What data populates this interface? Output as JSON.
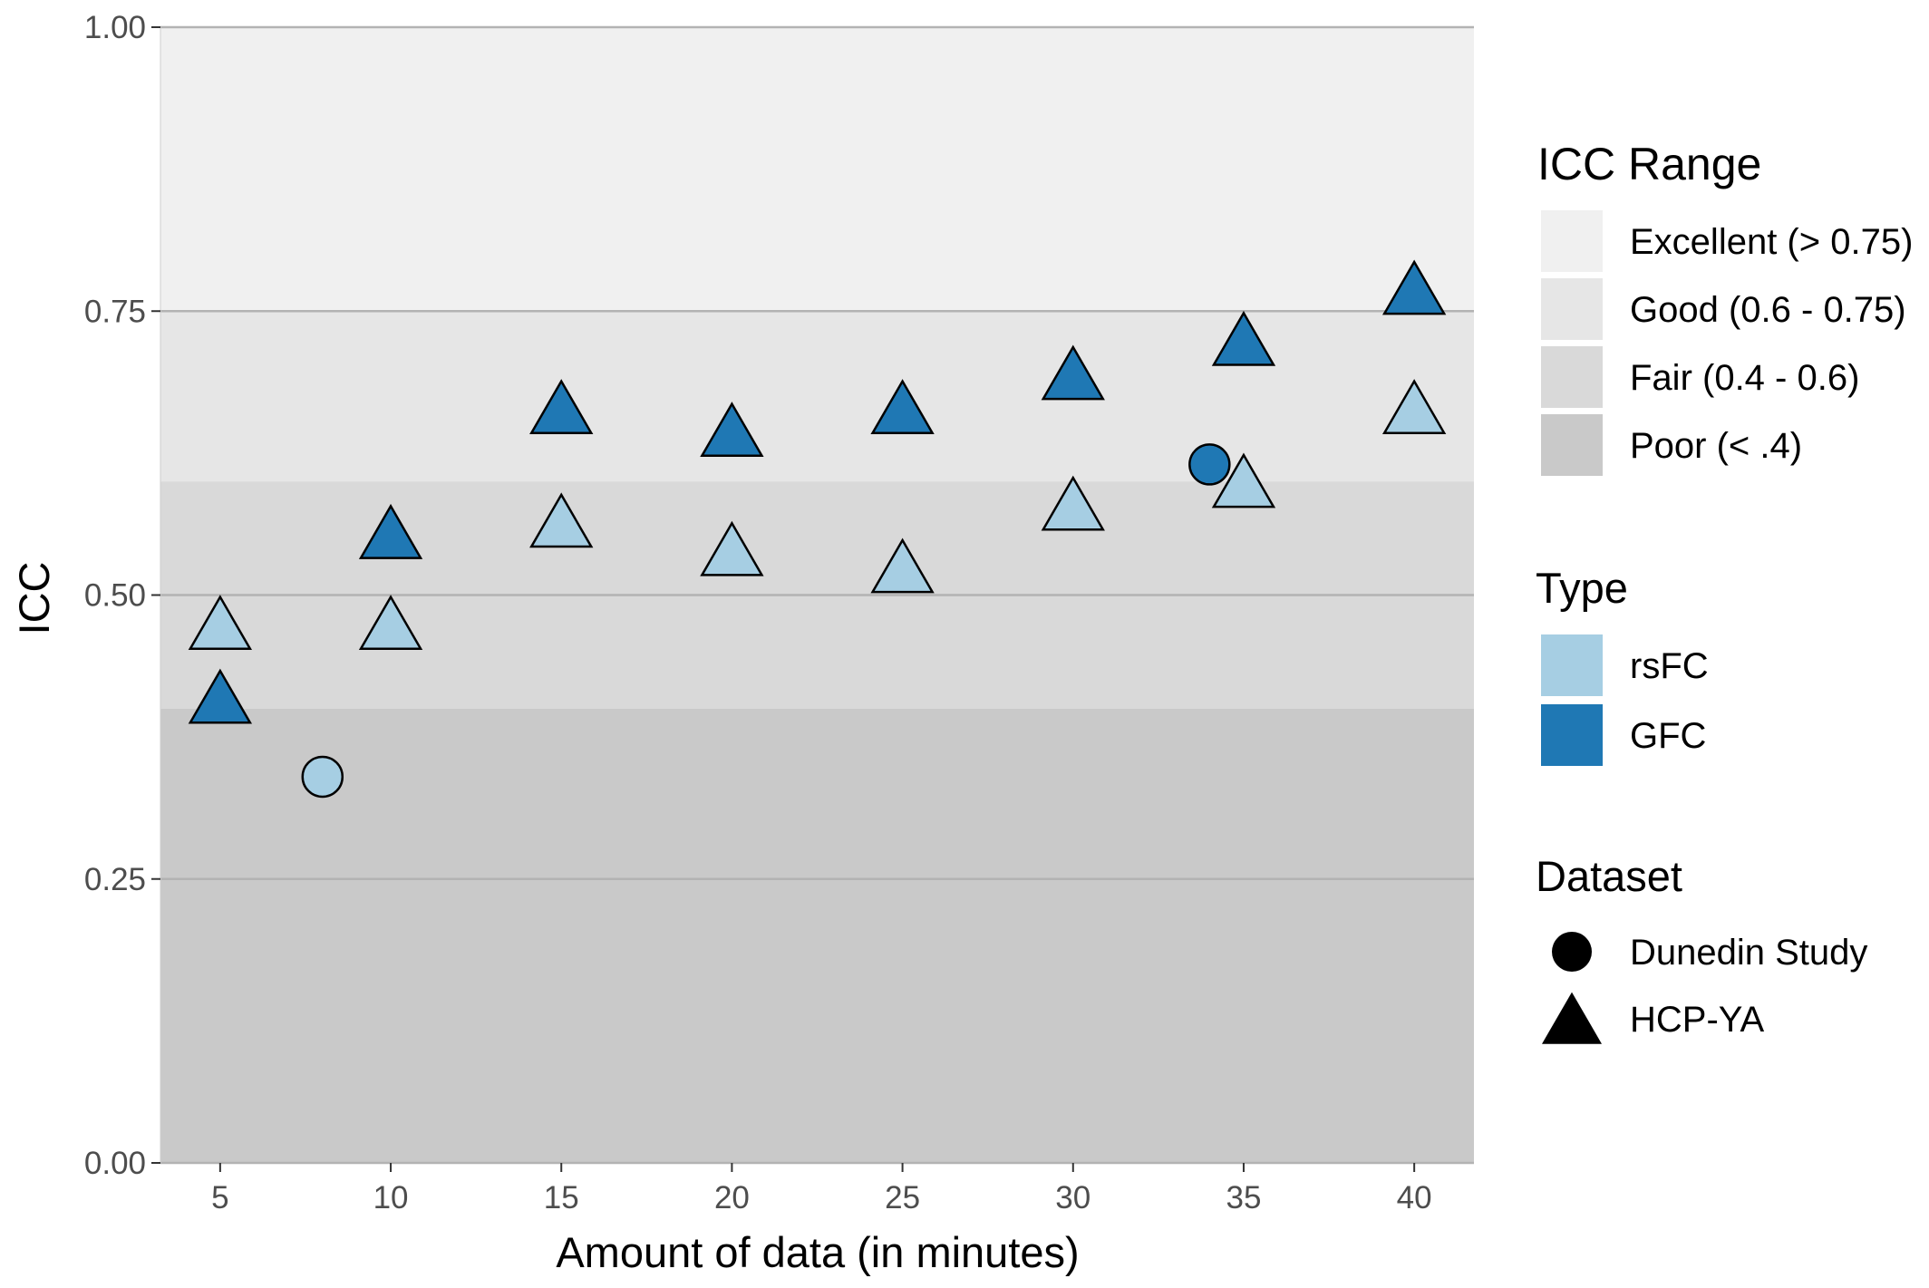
{
  "chart_data": {
    "type": "scatter",
    "xlabel": "Amount of data (in minutes)",
    "ylabel": "ICC",
    "xlim": [
      3.25,
      41.75
    ],
    "ylim": [
      0,
      1
    ],
    "x_ticks": [
      "5",
      "10",
      "15",
      "20",
      "25",
      "30",
      "35",
      "40"
    ],
    "y_ticks": [
      "0.00",
      "0.25",
      "0.50",
      "0.75",
      "1.00"
    ],
    "grid": true,
    "legend_position": "right",
    "bands": [
      {
        "label": "Excellent (> 0.75)",
        "from": 0.75,
        "to": 1.0,
        "color": "#f0f0f0"
      },
      {
        "label": "Good (0.6 - 0.75)",
        "from": 0.6,
        "to": 0.75,
        "color": "#e6e6e6"
      },
      {
        "label": "Fair (0.4 - 0.6)",
        "from": 0.4,
        "to": 0.6,
        "color": "#d9d9d9"
      },
      {
        "label": "Poor (< .4)",
        "from": 0.0,
        "to": 0.4,
        "color": "#c9c9c9"
      }
    ],
    "band_legend_title": "ICC Range",
    "type_legend_title": "Type",
    "types": [
      {
        "name": "rsFC",
        "color": "#a6cee3"
      },
      {
        "name": "GFC",
        "color": "#1f78b4"
      }
    ],
    "dataset_legend_title": "Dataset",
    "datasets": [
      {
        "name": "Dunedin Study",
        "shape": "circle"
      },
      {
        "name": "HCP-YA",
        "shape": "triangle"
      }
    ],
    "points": [
      {
        "x": 5,
        "y": 0.47,
        "type": "rsFC",
        "dataset": "HCP-YA"
      },
      {
        "x": 10,
        "y": 0.47,
        "type": "rsFC",
        "dataset": "HCP-YA"
      },
      {
        "x": 15,
        "y": 0.56,
        "type": "rsFC",
        "dataset": "HCP-YA"
      },
      {
        "x": 20,
        "y": 0.535,
        "type": "rsFC",
        "dataset": "HCP-YA"
      },
      {
        "x": 25,
        "y": 0.52,
        "type": "rsFC",
        "dataset": "HCP-YA"
      },
      {
        "x": 30,
        "y": 0.575,
        "type": "rsFC",
        "dataset": "HCP-YA"
      },
      {
        "x": 35,
        "y": 0.595,
        "type": "rsFC",
        "dataset": "HCP-YA"
      },
      {
        "x": 40,
        "y": 0.66,
        "type": "rsFC",
        "dataset": "HCP-YA"
      },
      {
        "x": 5,
        "y": 0.405,
        "type": "GFC",
        "dataset": "HCP-YA"
      },
      {
        "x": 10,
        "y": 0.55,
        "type": "GFC",
        "dataset": "HCP-YA"
      },
      {
        "x": 15,
        "y": 0.66,
        "type": "GFC",
        "dataset": "HCP-YA"
      },
      {
        "x": 20,
        "y": 0.64,
        "type": "GFC",
        "dataset": "HCP-YA"
      },
      {
        "x": 25,
        "y": 0.66,
        "type": "GFC",
        "dataset": "HCP-YA"
      },
      {
        "x": 30,
        "y": 0.69,
        "type": "GFC",
        "dataset": "HCP-YA"
      },
      {
        "x": 35,
        "y": 0.72,
        "type": "GFC",
        "dataset": "HCP-YA"
      },
      {
        "x": 40,
        "y": 0.765,
        "type": "GFC",
        "dataset": "HCP-YA"
      },
      {
        "x": 8,
        "y": 0.34,
        "type": "rsFC",
        "dataset": "Dunedin Study"
      },
      {
        "x": 34,
        "y": 0.615,
        "type": "GFC",
        "dataset": "Dunedin Study"
      }
    ]
  }
}
